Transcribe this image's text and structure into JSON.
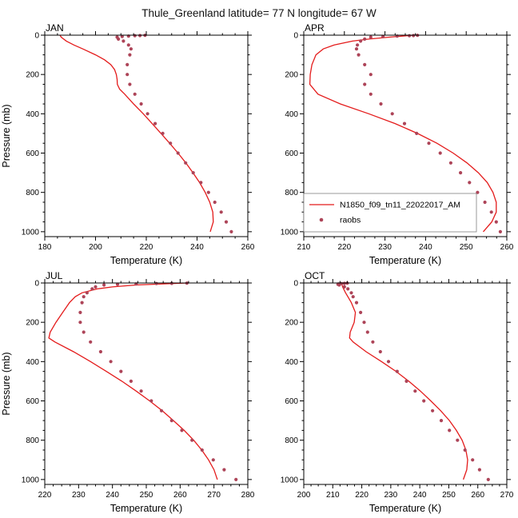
{
  "page": {
    "title": "Thule_Greenland  latitude= 77 N longitude= 67 W"
  },
  "colors": {
    "model_line": "#e41b1b",
    "raobs_dot": "#ad4458",
    "axis": "#000000",
    "legend_border": "#808080",
    "background": "#ffffff"
  },
  "legend": {
    "line_label": "N1850_f09_tn11_22022017_AM",
    "dot_label": "raobs"
  },
  "chart_data": [
    {
      "type": "line",
      "label": "JAN",
      "xlabel": "Temperature (K)",
      "ylabel": "Pressure (mb)",
      "xlim": [
        180,
        260
      ],
      "xticks": [
        180,
        200,
        220,
        240,
        260
      ],
      "ylim": [
        0,
        1000
      ],
      "yticks": [
        0,
        200,
        400,
        600,
        800,
        1000
      ],
      "y_title": true,
      "show_legend": false,
      "series": [
        {
          "name": "N1850_f09_tn11_22022017_AM",
          "style": "line",
          "points": [
            [
              0,
              186
            ],
            [
              10,
              186.5
            ],
            [
              30,
              188.5
            ],
            [
              50,
              191.5
            ],
            [
              70,
              195
            ],
            [
              100,
              200
            ],
            [
              125,
              203.5
            ],
            [
              150,
              206
            ],
            [
              175,
              207.5
            ],
            [
              200,
              208.2
            ],
            [
              225,
              208.5
            ],
            [
              250,
              208.6
            ],
            [
              275,
              209.5
            ],
            [
              300,
              211.5
            ],
            [
              350,
              215
            ],
            [
              400,
              218.8
            ],
            [
              450,
              222.3
            ],
            [
              500,
              225.8
            ],
            [
              550,
              229.2
            ],
            [
              600,
              232.5
            ],
            [
              650,
              235.6
            ],
            [
              700,
              238.4
            ],
            [
              750,
              241
            ],
            [
              800,
              243.2
            ],
            [
              850,
              245
            ],
            [
              900,
              246.2
            ],
            [
              950,
              246.4
            ],
            [
              1000,
              245.2
            ]
          ]
        },
        {
          "name": "raobs",
          "style": "dots",
          "points": [
            [
              1,
              219.5
            ],
            [
              2,
              217.5
            ],
            [
              3,
              215.5
            ],
            [
              5,
              213
            ],
            [
              7,
              210.5
            ],
            [
              10,
              208.5
            ],
            [
              20,
              209
            ],
            [
              30,
              211
            ],
            [
              50,
              213
            ],
            [
              70,
              214
            ],
            [
              100,
              213.5
            ],
            [
              150,
              212.5
            ],
            [
              200,
              212.5
            ],
            [
              250,
              213.5
            ],
            [
              300,
              215.5
            ],
            [
              350,
              218
            ],
            [
              400,
              220.5
            ],
            [
              450,
              223.5
            ],
            [
              500,
              226.5
            ],
            [
              550,
              229.5
            ],
            [
              600,
              232.5
            ],
            [
              650,
              235.5
            ],
            [
              700,
              238.5
            ],
            [
              750,
              241.5
            ],
            [
              800,
              244.5
            ],
            [
              850,
              247
            ],
            [
              900,
              249.5
            ],
            [
              950,
              251.5
            ],
            [
              1000,
              253.5
            ]
          ]
        }
      ]
    },
    {
      "type": "line",
      "label": "APR",
      "xlabel": "Temperature (K)",
      "ylabel": "Pressure (mb)",
      "xlim": [
        210,
        260
      ],
      "xticks": [
        210,
        220,
        230,
        240,
        250,
        260
      ],
      "ylim": [
        0,
        1000
      ],
      "yticks": [
        0,
        200,
        400,
        600,
        800,
        1000
      ],
      "y_title": false,
      "show_legend": true,
      "series": [
        {
          "name": "N1850_f09_tn11_22022017_AM",
          "style": "line",
          "points": [
            [
              0,
              237
            ],
            [
              10,
              231
            ],
            [
              20,
              226
            ],
            [
              30,
              222
            ],
            [
              50,
              217.5
            ],
            [
              70,
              214.8
            ],
            [
              100,
              213
            ],
            [
              150,
              212
            ],
            [
              200,
              211.6
            ],
            [
              250,
              211.5
            ],
            [
              300,
              213.5
            ],
            [
              350,
              219
            ],
            [
              400,
              226
            ],
            [
              450,
              232.5
            ],
            [
              500,
              238
            ],
            [
              550,
              242.8
            ],
            [
              600,
              246.8
            ],
            [
              650,
              250.2
            ],
            [
              700,
              253
            ],
            [
              750,
              255.2
            ],
            [
              800,
              256.6
            ],
            [
              850,
              257.4
            ],
            [
              900,
              257.4
            ],
            [
              950,
              256.3
            ],
            [
              1000,
              254.2
            ]
          ]
        },
        {
          "name": "raobs",
          "style": "dots",
          "points": [
            [
              1,
              238
            ],
            [
              2,
              237
            ],
            [
              3,
              236
            ],
            [
              5,
              233
            ],
            [
              7,
              229.5
            ],
            [
              10,
              226.5
            ],
            [
              20,
              225
            ],
            [
              30,
              224
            ],
            [
              50,
              223.2
            ],
            [
              70,
              223
            ],
            [
              100,
              223.5
            ],
            [
              150,
              225
            ],
            [
              200,
              226.5
            ],
            [
              250,
              225
            ],
            [
              300,
              226.5
            ],
            [
              350,
              229
            ],
            [
              400,
              231.8
            ],
            [
              450,
              234.8
            ],
            [
              500,
              237.8
            ],
            [
              550,
              240.8
            ],
            [
              600,
              243.6
            ],
            [
              650,
              246.2
            ],
            [
              700,
              248.6
            ],
            [
              750,
              250.8
            ],
            [
              800,
              252.8
            ],
            [
              850,
              254.6
            ],
            [
              900,
              256.2
            ],
            [
              950,
              257.4
            ],
            [
              1000,
              258.4
            ]
          ]
        }
      ]
    },
    {
      "type": "line",
      "label": "JUL",
      "xlabel": "Temperature (K)",
      "ylabel": "Pressure (mb)",
      "xlim": [
        220,
        280
      ],
      "xticks": [
        220,
        230,
        240,
        250,
        260,
        270,
        280
      ],
      "ylim": [
        0,
        1000
      ],
      "yticks": [
        0,
        200,
        400,
        600,
        800,
        1000
      ],
      "y_title": true,
      "show_legend": false,
      "series": [
        {
          "name": "N1850_f09_tn11_22022017_AM",
          "style": "line",
          "points": [
            [
              0,
              262
            ],
            [
              10,
              247
            ],
            [
              20,
              240
            ],
            [
              30,
              235.5
            ],
            [
              50,
              231
            ],
            [
              70,
              229
            ],
            [
              100,
              227.3
            ],
            [
              150,
              225.3
            ],
            [
              200,
              223.3
            ],
            [
              250,
              221.6
            ],
            [
              280,
              221.2
            ],
            [
              300,
              223
            ],
            [
              350,
              228.5
            ],
            [
              400,
              233.5
            ],
            [
              450,
              238.2
            ],
            [
              500,
              242.8
            ],
            [
              550,
              247
            ],
            [
              600,
              251
            ],
            [
              650,
              254.7
            ],
            [
              700,
              258
            ],
            [
              750,
              261.2
            ],
            [
              800,
              264
            ],
            [
              850,
              266.4
            ],
            [
              900,
              268.4
            ],
            [
              950,
              270
            ],
            [
              1000,
              271
            ]
          ]
        },
        {
          "name": "raobs",
          "style": "dots",
          "points": [
            [
              1,
              262
            ],
            [
              2,
              257.5
            ],
            [
              3,
              253
            ],
            [
              5,
              247
            ],
            [
              7,
              241.5
            ],
            [
              10,
              237.5
            ],
            [
              20,
              235
            ],
            [
              30,
              234
            ],
            [
              50,
              232.5
            ],
            [
              70,
              231.5
            ],
            [
              100,
              231
            ],
            [
              150,
              230.5
            ],
            [
              200,
              230.5
            ],
            [
              250,
              231.5
            ],
            [
              300,
              233.5
            ],
            [
              350,
              236.5
            ],
            [
              400,
              239.5
            ],
            [
              450,
              242.5
            ],
            [
              500,
              245.5
            ],
            [
              550,
              248.5
            ],
            [
              600,
              251.5
            ],
            [
              650,
              254.5
            ],
            [
              700,
              257.5
            ],
            [
              750,
              260.5
            ],
            [
              800,
              263.5
            ],
            [
              850,
              266.5
            ],
            [
              900,
              269.8
            ],
            [
              950,
              273
            ],
            [
              1000,
              276.5
            ]
          ]
        }
      ]
    },
    {
      "type": "line",
      "label": "OCT",
      "xlabel": "Temperature (K)",
      "ylabel": "Pressure (mb)",
      "xlim": [
        200,
        270
      ],
      "xticks": [
        200,
        210,
        220,
        230,
        240,
        250,
        260,
        270
      ],
      "ylim": [
        0,
        1000
      ],
      "yticks": [
        0,
        200,
        400,
        600,
        800,
        1000
      ],
      "y_title": false,
      "show_legend": false,
      "series": [
        {
          "name": "N1850_f09_tn11_22022017_AM",
          "style": "line",
          "points": [
            [
              0,
              213
            ],
            [
              20,
              213.4
            ],
            [
              50,
              214.4
            ],
            [
              70,
              215.2
            ],
            [
              100,
              216.4
            ],
            [
              150,
              217.8
            ],
            [
              200,
              217.4
            ],
            [
              250,
              216
            ],
            [
              280,
              215.8
            ],
            [
              300,
              217
            ],
            [
              350,
              221.5
            ],
            [
              400,
              226.8
            ],
            [
              450,
              231.8
            ],
            [
              500,
              236.2
            ],
            [
              550,
              240.2
            ],
            [
              600,
              243.8
            ],
            [
              650,
              247.2
            ],
            [
              700,
              250.2
            ],
            [
              750,
              252.6
            ],
            [
              800,
              254.6
            ],
            [
              850,
              255.9
            ],
            [
              900,
              256.5
            ],
            [
              950,
              256.2
            ],
            [
              1000,
              255
            ]
          ]
        },
        {
          "name": "raobs",
          "style": "dots",
          "points": [
            [
              1,
              215
            ],
            [
              2,
              214
            ],
            [
              3,
              213
            ],
            [
              5,
              212
            ],
            [
              7,
              211.8
            ],
            [
              10,
              212.2
            ],
            [
              20,
              214
            ],
            [
              30,
              215.2
            ],
            [
              50,
              216.4
            ],
            [
              70,
              217
            ],
            [
              100,
              218.2
            ],
            [
              150,
              219.6
            ],
            [
              200,
              220.8
            ],
            [
              250,
              222
            ],
            [
              300,
              223.8
            ],
            [
              350,
              226.4
            ],
            [
              400,
              229.2
            ],
            [
              450,
              232.2
            ],
            [
              500,
              235.4
            ],
            [
              550,
              238.4
            ],
            [
              600,
              241.4
            ],
            [
              650,
              244.4
            ],
            [
              700,
              247.4
            ],
            [
              750,
              250.2
            ],
            [
              800,
              253
            ],
            [
              850,
              255.6
            ],
            [
              900,
              258.2
            ],
            [
              950,
              260.6
            ],
            [
              1000,
              263.6
            ]
          ]
        }
      ]
    }
  ]
}
